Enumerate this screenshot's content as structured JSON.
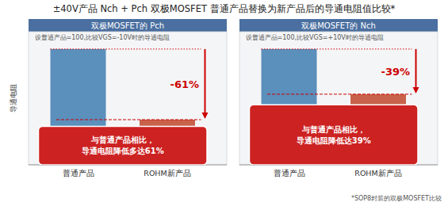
{
  "title": "±40V产品 Nch + Pch 双极MOSFET 普通产品替换为新产品后的导通电阻值比较*",
  "footnote": "*SOP8封装的双极MOSFET比较",
  "chart_data": [
    {
      "type": "bar",
      "title": "双极MOSFET的 Pch",
      "subtitle": "设普通产品=100,比较VGS=-10V时的导通电阻",
      "y_label": "导通电阻",
      "categories": [
        "普通产品",
        "ROHM新产品"
      ],
      "values": [
        100,
        39
      ],
      "colors": [
        "#5b8fbc",
        "#c8624a"
      ],
      "ylim": [
        0,
        115
      ],
      "yticks": [],
      "tick_labels": false,
      "annotations": [
        {
          "text": "-61%",
          "color": "#cc0000"
        },
        {
          "text": "与普通产品相比，\n导通电阻降低多达61%",
          "color": "#cc2222"
        }
      ]
    },
    {
      "type": "bar",
      "title": "双极MOSFET的 Nch",
      "subtitle": "设普通产品=100,比较VGS=+10V时的导通电阻",
      "categories": [
        "普通产品",
        "ROHM新产品"
      ],
      "values": [
        100,
        61
      ],
      "colors": [
        "#5b8fbc",
        "#c8624a"
      ],
      "ylim": [
        0,
        115
      ],
      "yticks": [],
      "tick_labels": false,
      "annotations": [
        {
          "text": "-39%",
          "color": "#cc0000"
        },
        {
          "text": "与普通产品相比，\n导通电阻降低达39%",
          "color": "#cc2222"
        }
      ]
    }
  ]
}
